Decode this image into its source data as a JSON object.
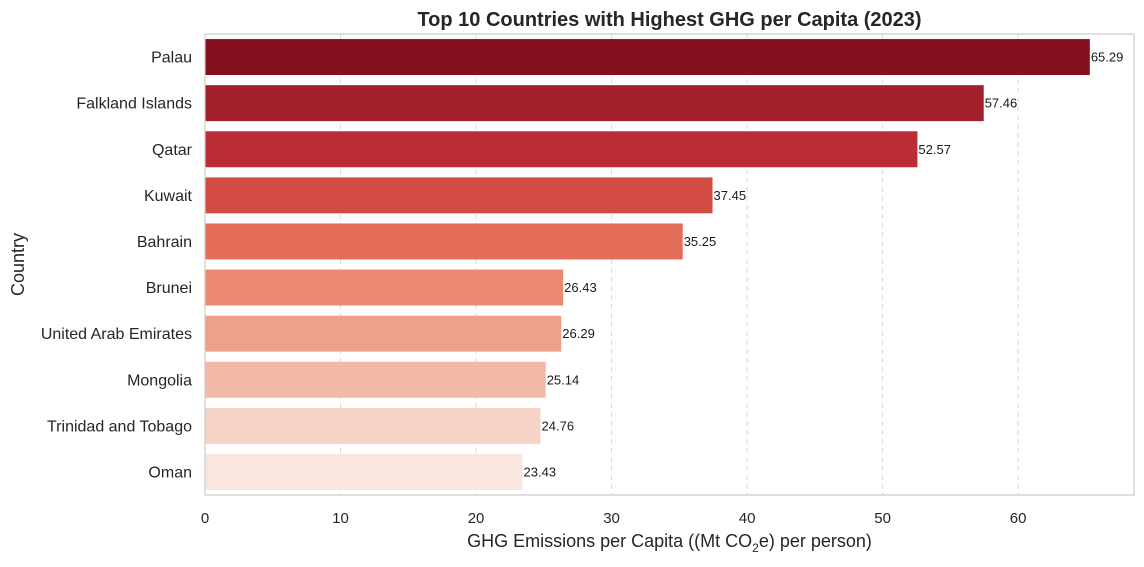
{
  "chart_data": {
    "type": "bar",
    "orientation": "horizontal",
    "title": "Top 10 Countries with Highest GHG per Capita (2023)",
    "xlabel": {
      "prefix": "GHG Emissions per Capita ((Mt CO",
      "subscript": "2",
      "suffix": "e) per person)"
    },
    "ylabel": "Country",
    "xlim": [
      0,
      68.55
    ],
    "xticks": [
      0,
      10,
      20,
      30,
      40,
      50,
      60
    ],
    "grid": "vertical-dashed",
    "categories": [
      "Palau",
      "Falkland Islands",
      "Qatar",
      "Kuwait",
      "Bahrain",
      "Brunei",
      "United Arab Emirates",
      "Mongolia",
      "Trinidad and Tobago",
      "Oman"
    ],
    "values": [
      65.29,
      57.46,
      52.57,
      37.45,
      35.25,
      26.43,
      26.29,
      25.14,
      24.76,
      23.43
    ],
    "value_labels": [
      "65.29",
      "57.46",
      "52.57",
      "37.45",
      "35.25",
      "26.43",
      "26.29",
      "25.14",
      "24.76",
      "23.43"
    ],
    "colors": [
      "#860f1d",
      "#a1202a",
      "#bb2d34",
      "#d24b43",
      "#e36c58",
      "#eb8a70",
      "#eda08a",
      "#f2b9a5",
      "#f5d4c6",
      "#f9e6dd"
    ]
  }
}
